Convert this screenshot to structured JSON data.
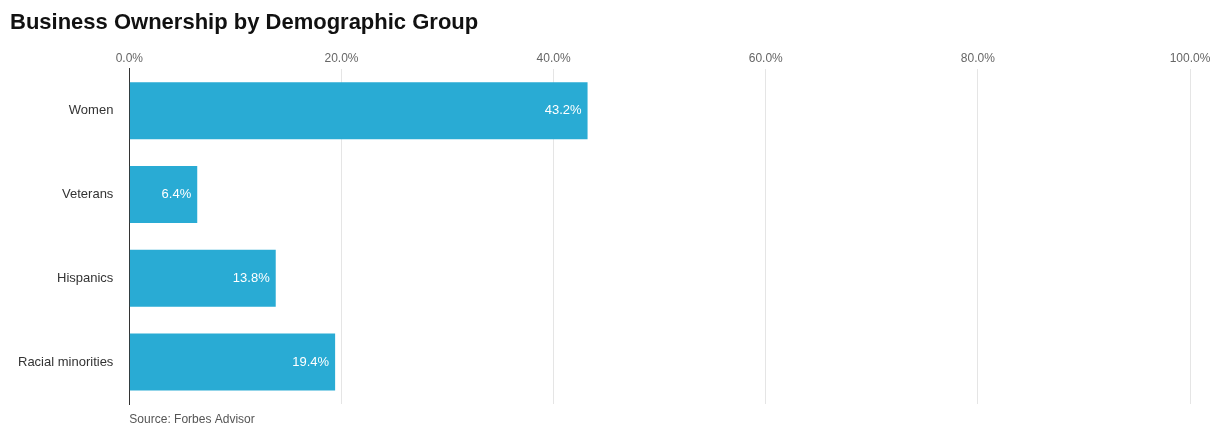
{
  "chart_data": {
    "type": "bar",
    "title": "Business Ownership by Demographic Group",
    "orientation": "horizontal",
    "categories": [
      "Women",
      "Veterans",
      "Hispanics",
      "Racial minorities"
    ],
    "values": [
      43.2,
      6.4,
      13.8,
      19.4
    ],
    "value_labels": [
      "43.2%",
      "6.4%",
      "13.8%",
      "19.4%"
    ],
    "data_labels": true,
    "color": "#29ABD4",
    "xlim": [
      0,
      100
    ],
    "xticks": [
      {
        "value": 0,
        "label": "0.0%"
      },
      {
        "value": 20,
        "label": "20.0%"
      },
      {
        "value": 40,
        "label": "40.0%"
      },
      {
        "value": 60,
        "label": "60.0%"
      },
      {
        "value": 80,
        "label": "80.0%"
      },
      {
        "value": 100,
        "label": "100.0%"
      }
    ],
    "grid": true,
    "annotation": "Source: Forbes Advisor"
  }
}
